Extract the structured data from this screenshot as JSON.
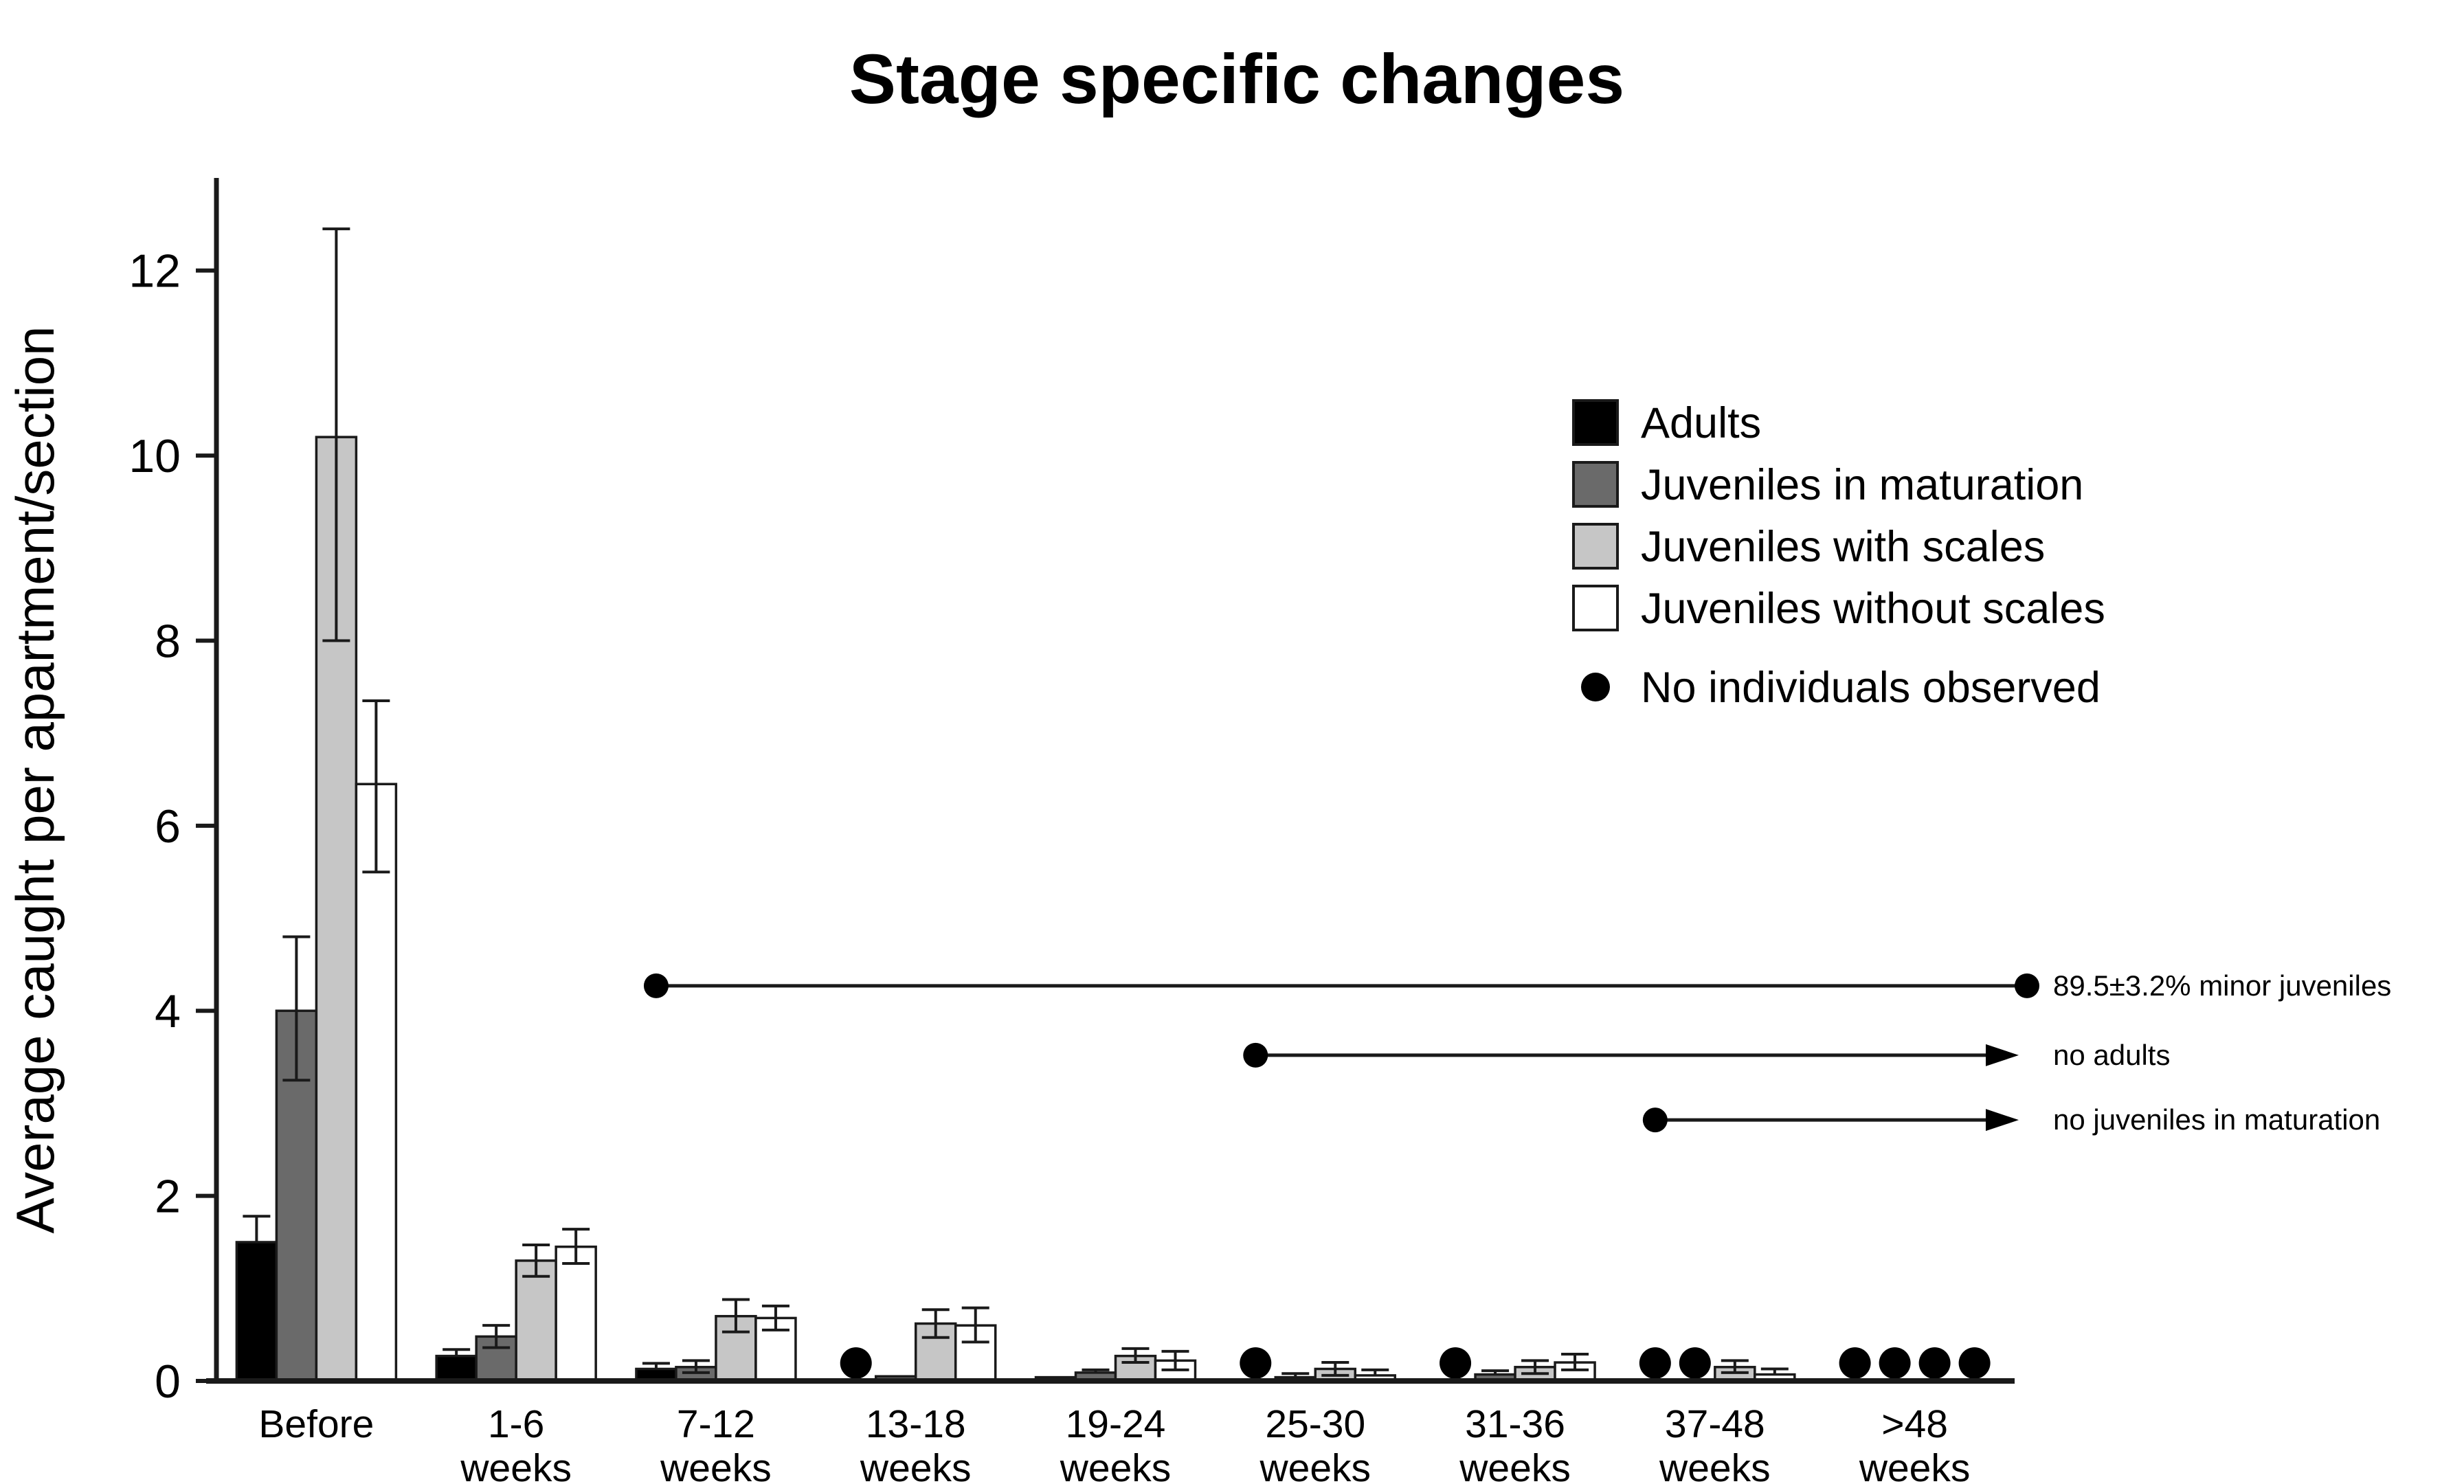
{
  "chart_data": {
    "type": "bar",
    "title": "Stage specific changes",
    "ylabel": "Average caught per apartment/section",
    "xlabel": "",
    "ylim": [
      0,
      13
    ],
    "yticks": [
      0,
      2,
      4,
      6,
      8,
      10,
      12
    ],
    "grid": false,
    "legend_position": "upper-right-inside",
    "categories": [
      {
        "line1": "Before",
        "line2": ""
      },
      {
        "line1": "1-6",
        "line2": "weeks"
      },
      {
        "line1": "7-12",
        "line2": "weeks"
      },
      {
        "line1": "13-18",
        "line2": "weeks"
      },
      {
        "line1": "19-24",
        "line2": "weeks"
      },
      {
        "line1": "25-30",
        "line2": "weeks"
      },
      {
        "line1": "31-36",
        "line2": "weeks"
      },
      {
        "line1": "37-48",
        "line2": "weeks"
      },
      {
        "line1": ">48",
        "line2": "weeks"
      }
    ],
    "series": [
      {
        "name": "Adults",
        "color": "#000000",
        "values": [
          1.5,
          0.27,
          0.13,
          null,
          0.04,
          null,
          null,
          null,
          null
        ],
        "err_top": [
          1.78,
          0.34,
          0.19,
          null,
          null,
          null,
          null,
          null,
          null
        ],
        "err_bot": [
          null,
          null,
          null,
          null,
          null,
          null,
          null,
          null,
          null
        ]
      },
      {
        "name": "Juveniles in maturation",
        "color": "#6a6a6a",
        "values": [
          4.0,
          0.48,
          0.15,
          0.05,
          0.09,
          0.04,
          0.07,
          null,
          null
        ],
        "err_top": [
          4.8,
          0.6,
          0.22,
          null,
          0.12,
          0.08,
          0.11,
          null,
          null
        ],
        "err_bot": [
          3.25,
          0.36,
          0.09,
          null,
          null,
          null,
          null,
          null,
          null
        ]
      },
      {
        "name": "Juveniles with scales",
        "color": "#c6c6c6",
        "values": [
          10.2,
          1.3,
          0.7,
          0.62,
          0.27,
          0.13,
          0.15,
          0.15,
          null
        ],
        "err_top": [
          12.45,
          1.47,
          0.88,
          0.77,
          0.35,
          0.2,
          0.22,
          0.22,
          null
        ],
        "err_bot": [
          8.0,
          1.13,
          0.53,
          0.47,
          0.2,
          0.06,
          0.08,
          0.09,
          null
        ]
      },
      {
        "name": "Juveniles without scales",
        "color": "#ffffff",
        "values": [
          6.45,
          1.45,
          0.68,
          0.6,
          0.22,
          0.06,
          0.2,
          0.07,
          null
        ],
        "err_top": [
          7.35,
          1.64,
          0.81,
          0.79,
          0.32,
          0.12,
          0.29,
          0.13,
          null
        ],
        "err_bot": [
          5.5,
          1.27,
          0.55,
          0.42,
          0.12,
          null,
          0.12,
          null,
          null
        ]
      }
    ],
    "no_individuals": {
      "label": "No individuals observed",
      "marker_color": "#000000",
      "positions": [
        {
          "group": 3,
          "slot": 0
        },
        {
          "group": 5,
          "slot": 0
        },
        {
          "group": 6,
          "slot": 0
        },
        {
          "group": 7,
          "slot": 0
        },
        {
          "group": 7,
          "slot": 1
        },
        {
          "group": 8,
          "slot": 0
        },
        {
          "group": 8,
          "slot": 1
        },
        {
          "group": 8,
          "slot": 2
        },
        {
          "group": 8,
          "slot": 3
        }
      ]
    },
    "annotations": [
      {
        "label": "89.5±3.2% minor juveniles",
        "y": 4.27,
        "start_group": 2,
        "start_slot": 0,
        "start_marker": "dot",
        "end_marker": "dot"
      },
      {
        "label": "no adults",
        "y": 3.52,
        "start_group": 5,
        "start_slot": 0,
        "start_marker": "dot",
        "end_marker": "arrow"
      },
      {
        "label": "no juveniles in maturation",
        "y": 2.82,
        "start_group": 7,
        "start_slot": 0,
        "start_marker": "dot",
        "end_marker": "arrow"
      }
    ],
    "colors": {
      "axis": "#1a1a1a",
      "error_bar": "#1a1a1a",
      "annotation_line": "#1a1a1a",
      "text": "#000000",
      "background": "#ffffff"
    }
  }
}
